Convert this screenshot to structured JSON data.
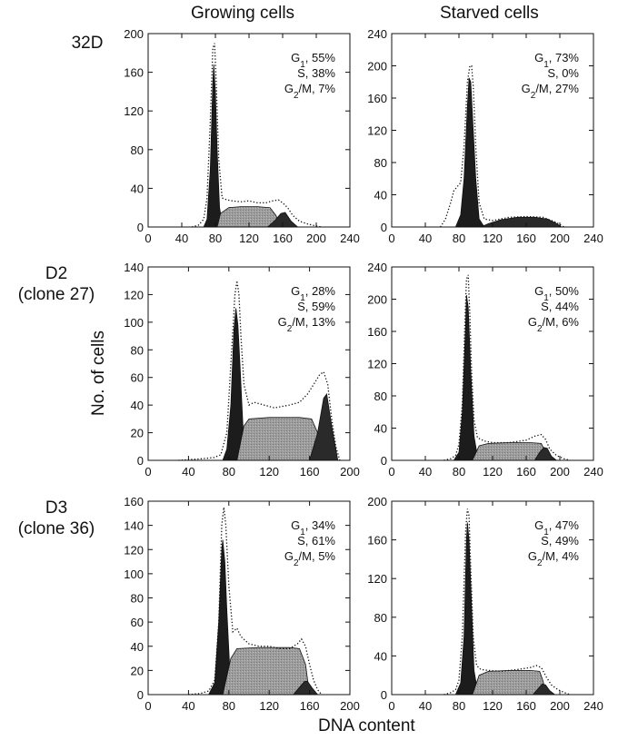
{
  "columns": [
    "Growing cells",
    "Starved cells"
  ],
  "rows": [
    {
      "name": "32D",
      "sub": ""
    },
    {
      "name": "D2",
      "sub": "(clone 27)"
    },
    {
      "name": "D3",
      "sub": "(clone 36)"
    }
  ],
  "ylabel": "No. of cells",
  "xlabel": "DNA content",
  "chart_data": [
    {
      "type": "area",
      "row": "32D",
      "column": "Growing cells",
      "xlim": [
        0,
        240
      ],
      "xticks": [
        0,
        40,
        80,
        120,
        160,
        200,
        240
      ],
      "ylim": [
        0,
        200
      ],
      "yticks": [
        0,
        40,
        80,
        120,
        160,
        200
      ],
      "annotation": {
        "g1": "G1, 55%",
        "s": "S, 38%",
        "g2m": "G2/M, 7%"
      },
      "series": [
        {
          "component": "G1",
          "x": [
            66,
            70,
            74,
            77,
            78,
            80,
            82,
            85,
            88,
            92
          ],
          "y": [
            0,
            8,
            60,
            150,
            168,
            140,
            80,
            20,
            4,
            0
          ]
        },
        {
          "component": "S",
          "x": [
            82,
            86,
            96,
            110,
            130,
            145,
            152,
            158
          ],
          "y": [
            0,
            14,
            20,
            21,
            21,
            20,
            12,
            0
          ]
        },
        {
          "component": "G2/M",
          "x": [
            142,
            150,
            158,
            163,
            170,
            178
          ],
          "y": [
            0,
            6,
            14,
            15,
            6,
            0
          ]
        },
        {
          "component": "data",
          "x": [
            52,
            60,
            66,
            70,
            74,
            77,
            79,
            81,
            84,
            88,
            94,
            100,
            110,
            120,
            130,
            140,
            148,
            155,
            160,
            166,
            172,
            180,
            190,
            200,
            206
          ],
          "y": [
            0,
            2,
            8,
            30,
            110,
            185,
            190,
            150,
            70,
            30,
            28,
            27,
            26,
            27,
            25,
            25,
            27,
            28,
            25,
            20,
            12,
            6,
            3,
            1,
            0
          ]
        }
      ]
    },
    {
      "type": "area",
      "row": "32D",
      "column": "Starved cells",
      "xlim": [
        0,
        240
      ],
      "xticks": [
        0,
        40,
        80,
        120,
        160,
        200,
        240
      ],
      "ylim": [
        0,
        240
      ],
      "yticks": [
        0,
        40,
        80,
        120,
        160,
        200,
        240
      ],
      "annotation": {
        "g1": "G1, 73%",
        "s": "S, 0%",
        "g2m": "G2/M, 27%"
      },
      "series": [
        {
          "component": "G1",
          "x": [
            76,
            82,
            86,
            90,
            92,
            94,
            96,
            100,
            104,
            110
          ],
          "y": [
            0,
            15,
            60,
            150,
            185,
            180,
            140,
            60,
            10,
            0
          ]
        },
        {
          "component": "G2/M",
          "x": [
            106,
            115,
            130,
            150,
            170,
            185,
            195,
            202
          ],
          "y": [
            0,
            4,
            9,
            12,
            12,
            10,
            5,
            0
          ]
        },
        {
          "component": "data",
          "x": [
            58,
            64,
            70,
            74,
            78,
            82,
            86,
            90,
            93,
            95,
            97,
            100,
            104,
            110,
            120,
            140,
            160,
            180,
            195,
            205
          ],
          "y": [
            0,
            10,
            30,
            45,
            50,
            55,
            100,
            180,
            200,
            200,
            175,
            100,
            30,
            10,
            8,
            12,
            13,
            12,
            6,
            0
          ]
        }
      ]
    },
    {
      "type": "area",
      "row": "D2",
      "column": "Growing cells",
      "xlim": [
        0,
        200
      ],
      "xticks": [
        0,
        40,
        80,
        120,
        160,
        200
      ],
      "ylim": [
        0,
        140
      ],
      "yticks": [
        0,
        20,
        40,
        60,
        80,
        100,
        120,
        140
      ],
      "annotation": {
        "g1": "G1, 28%",
        "s": "S, 59%",
        "g2m": "G2/M, 13%"
      },
      "series": [
        {
          "component": "G1",
          "x": [
            74,
            78,
            82,
            85,
            87,
            89,
            91,
            94,
            97,
            102
          ],
          "y": [
            0,
            8,
            40,
            95,
            110,
            98,
            70,
            25,
            6,
            0
          ]
        },
        {
          "component": "S",
          "x": [
            88,
            95,
            100,
            120,
            150,
            162,
            168,
            172
          ],
          "y": [
            0,
            25,
            30,
            31,
            31,
            30,
            20,
            0
          ]
        },
        {
          "component": "G2/M",
          "x": [
            160,
            168,
            174,
            177,
            182,
            188
          ],
          "y": [
            0,
            20,
            45,
            48,
            25,
            0
          ]
        },
        {
          "component": "data",
          "x": [
            30,
            50,
            65,
            72,
            78,
            82,
            86,
            88,
            90,
            92,
            95,
            100,
            105,
            115,
            125,
            140,
            150,
            158,
            165,
            170,
            174,
            178,
            182,
            186,
            190
          ],
          "y": [
            0,
            1,
            2,
            4,
            20,
            70,
            120,
            130,
            120,
            90,
            55,
            40,
            42,
            40,
            38,
            40,
            42,
            48,
            56,
            62,
            64,
            55,
            30,
            10,
            0
          ]
        }
      ]
    },
    {
      "type": "area",
      "row": "D2",
      "column": "Starved cells",
      "xlim": [
        0,
        240
      ],
      "xticks": [
        0,
        40,
        80,
        120,
        160,
        200,
        240
      ],
      "ylim": [
        0,
        240
      ],
      "yticks": [
        0,
        40,
        80,
        120,
        160,
        200,
        240
      ],
      "annotation": {
        "g1": "G1, 50%",
        "s": "S, 44%",
        "g2m": "G2/M, 6%"
      },
      "series": [
        {
          "component": "G1",
          "x": [
            74,
            80,
            84,
            88,
            89,
            91,
            94,
            98,
            102,
            106
          ],
          "y": [
            0,
            10,
            60,
            170,
            205,
            190,
            110,
            30,
            5,
            0
          ]
        },
        {
          "component": "S",
          "x": [
            96,
            104,
            115,
            140,
            165,
            178,
            182,
            186
          ],
          "y": [
            0,
            18,
            21,
            22,
            22,
            21,
            12,
            0
          ]
        },
        {
          "component": "G2/M",
          "x": [
            170,
            176,
            181,
            185,
            190,
            196
          ],
          "y": [
            0,
            10,
            16,
            15,
            5,
            0
          ]
        },
        {
          "component": "data",
          "x": [
            62,
            70,
            76,
            80,
            84,
            87,
            89,
            91,
            93,
            95,
            98,
            102,
            110,
            120,
            140,
            160,
            170,
            178,
            183,
            188,
            196,
            205,
            212
          ],
          "y": [
            0,
            2,
            6,
            20,
            70,
            170,
            225,
            230,
            180,
            110,
            50,
            28,
            24,
            22,
            22,
            25,
            30,
            32,
            26,
            14,
            6,
            2,
            0
          ]
        }
      ]
    },
    {
      "type": "area",
      "row": "D3",
      "column": "Growing cells",
      "xlim": [
        0,
        200
      ],
      "xticks": [
        0,
        40,
        80,
        120,
        160,
        200
      ],
      "ylim": [
        0,
        160
      ],
      "yticks": [
        0,
        20,
        40,
        60,
        80,
        100,
        120,
        140,
        160
      ],
      "annotation": {
        "g1": "G1, 34%",
        "s": "S, 61%",
        "g2m": "G2/M, 5%"
      },
      "series": [
        {
          "component": "G1",
          "x": [
            60,
            66,
            70,
            73,
            74,
            76,
            78,
            81,
            84,
            88
          ],
          "y": [
            0,
            10,
            60,
            120,
            128,
            110,
            70,
            20,
            4,
            0
          ]
        },
        {
          "component": "S",
          "x": [
            74,
            82,
            88,
            110,
            140,
            150,
            156,
            160
          ],
          "y": [
            0,
            30,
            38,
            39,
            39,
            38,
            25,
            0
          ]
        },
        {
          "component": "G2/M",
          "x": [
            144,
            150,
            155,
            158,
            163,
            168
          ],
          "y": [
            0,
            6,
            11,
            11,
            5,
            0
          ]
        },
        {
          "component": "data",
          "x": [
            40,
            52,
            60,
            66,
            70,
            73,
            75,
            77,
            80,
            84,
            88,
            92,
            100,
            110,
            120,
            130,
            140,
            148,
            152,
            156,
            160,
            164,
            168,
            172
          ],
          "y": [
            0,
            1,
            3,
            12,
            60,
            140,
            155,
            140,
            90,
            52,
            55,
            48,
            42,
            40,
            40,
            38,
            38,
            42,
            46,
            40,
            25,
            12,
            4,
            0
          ]
        }
      ]
    },
    {
      "type": "area",
      "row": "D3",
      "column": "Starved cells",
      "xlim": [
        0,
        240
      ],
      "xticks": [
        0,
        40,
        80,
        120,
        160,
        200,
        240
      ],
      "ylim": [
        0,
        200
      ],
      "yticks": [
        0,
        40,
        80,
        120,
        160,
        200
      ],
      "annotation": {
        "g1": "G1, 47%",
        "s": "S, 49%",
        "g2m": "G2/M, 4%"
      },
      "series": [
        {
          "component": "G1",
          "x": [
            76,
            82,
            86,
            89,
            90,
            92,
            95,
            98,
            102,
            106
          ],
          "y": [
            0,
            12,
            60,
            160,
            178,
            160,
            90,
            25,
            4,
            0
          ]
        },
        {
          "component": "S",
          "x": [
            96,
            104,
            115,
            140,
            165,
            176,
            180,
            184
          ],
          "y": [
            0,
            20,
            24,
            25,
            25,
            24,
            14,
            0
          ]
        },
        {
          "component": "G2/M",
          "x": [
            168,
            174,
            179,
            183,
            188,
            194
          ],
          "y": [
            0,
            6,
            11,
            10,
            4,
            0
          ]
        },
        {
          "component": "data",
          "x": [
            62,
            70,
            76,
            80,
            84,
            88,
            90,
            92,
            94,
            97,
            101,
            106,
            115,
            130,
            150,
            165,
            172,
            178,
            184,
            190,
            198,
            206,
            212
          ],
          "y": [
            0,
            2,
            5,
            15,
            60,
            170,
            192,
            185,
            130,
            60,
            30,
            26,
            25,
            24,
            26,
            28,
            30,
            28,
            18,
            10,
            5,
            2,
            0
          ]
        }
      ]
    }
  ]
}
